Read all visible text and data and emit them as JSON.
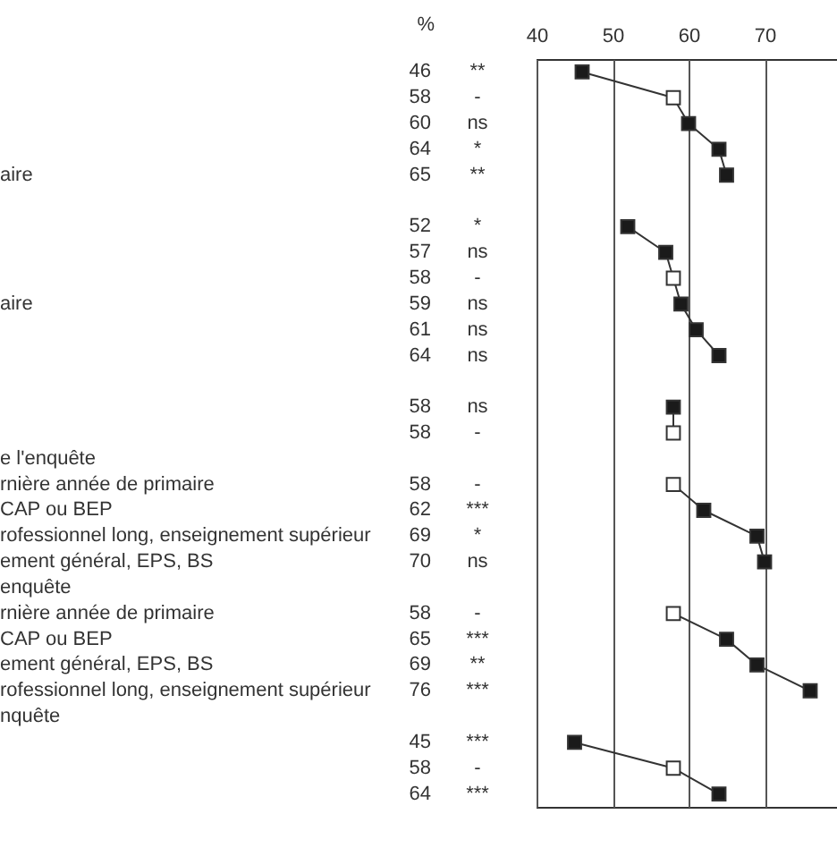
{
  "chart_data": {
    "type": "line",
    "orientation": "horizontal",
    "marker": "square",
    "line_style": "solid",
    "grid": "x",
    "data_labels": true,
    "x2lim": [
      40,
      80
    ],
    "x2ticks": [
      40,
      50,
      60,
      70
    ],
    "categories": [
      null,
      null,
      null,
      null,
      "aire",
      null,
      null,
      null,
      null,
      "aire",
      null,
      null,
      null,
      null,
      null,
      "e l'enquête",
      "rnière année de primaire",
      "CAP ou BEP",
      "rofessionnel long, enseignement supérieur",
      "ement général, EPS, BS",
      "enquête",
      "rnière année de primaire",
      "CAP ou BEP",
      "ement général, EPS, BS",
      "rofessionnel long, enseignement supérieur",
      "nquête",
      null,
      null,
      null
    ],
    "series": [
      {
        "color": "#333333",
        "values": [
          46,
          58,
          60,
          64,
          65,
          null,
          52,
          57,
          58,
          59,
          61,
          64,
          null,
          58,
          58,
          null,
          58,
          62,
          69,
          70,
          null,
          58,
          65,
          69,
          76,
          null,
          45,
          58,
          64
        ],
        "colors": [
          "#1a1a1a",
          "#ffffff",
          "#1a1a1a",
          "#1a1a1a",
          "#1a1a1a",
          null,
          "#1a1a1a",
          "#1a1a1a",
          "#ffffff",
          "#1a1a1a",
          "#1a1a1a",
          "#1a1a1a",
          null,
          "#1a1a1a",
          "#ffffff",
          null,
          "#ffffff",
          "#1a1a1a",
          "#1a1a1a",
          "#1a1a1a",
          null,
          "#ffffff",
          "#1a1a1a",
          "#1a1a1a",
          "#1a1a1a",
          null,
          "#1a1a1a",
          "#ffffff",
          "#1a1a1a"
        ]
      }
    ],
    "annotations": [
      "%",
      "**",
      "-",
      "ns",
      "*",
      "**",
      "*",
      "ns",
      "-",
      "ns",
      "ns",
      "ns",
      "ns",
      "-",
      "-",
      "***",
      "*",
      "ns",
      "-",
      "***",
      "**",
      "***",
      "***",
      "-",
      "***"
    ]
  }
}
